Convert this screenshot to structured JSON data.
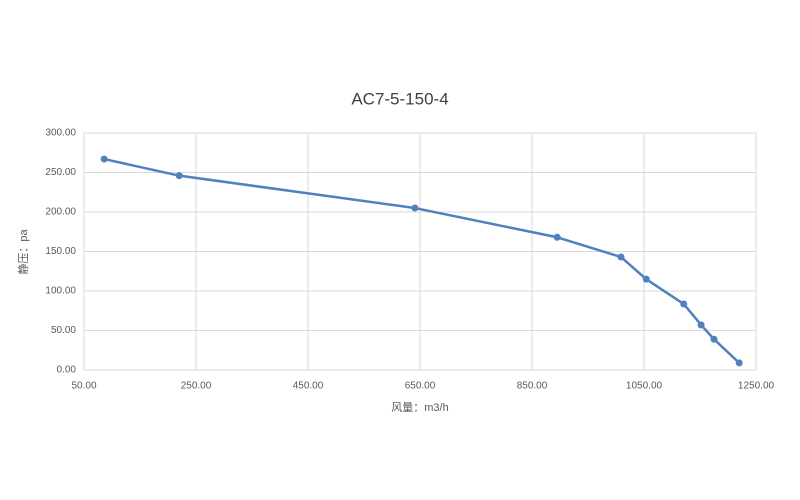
{
  "chart_data": {
    "type": "line",
    "title": "AC7-5-150-4",
    "x_label": "风量：m3/h",
    "y_label": "静压：pa",
    "x": [
      86,
      220,
      641,
      895,
      1009,
      1054,
      1121,
      1152,
      1175,
      1220
    ],
    "series": [
      {
        "name": "AC7-5-150-4",
        "color": "#4f81bd",
        "values": [
          267,
          246,
          205,
          168,
          143,
          115,
          83.5,
          57,
          39,
          9
        ]
      }
    ],
    "xlim": [
      50,
      1250
    ],
    "xticks": [
      {
        "value": 50,
        "label": "50.00"
      },
      {
        "value": 250,
        "label": "250.00"
      },
      {
        "value": 450,
        "label": "450.00"
      },
      {
        "value": 650,
        "label": "650.00"
      },
      {
        "value": 850,
        "label": "850.00"
      },
      {
        "value": 1050,
        "label": "1050.00"
      },
      {
        "value": 1250,
        "label": "1250.00"
      }
    ],
    "ylim": [
      0,
      300
    ],
    "yticks": [
      {
        "value": 0,
        "label": "0.00"
      },
      {
        "value": 50,
        "label": "50.00"
      },
      {
        "value": 100,
        "label": "100.00"
      },
      {
        "value": 150,
        "label": "150.00"
      },
      {
        "value": 200,
        "label": "200.00"
      },
      {
        "value": 250,
        "label": "250.00"
      },
      {
        "value": 300,
        "label": "300.00"
      }
    ],
    "grid": true
  }
}
